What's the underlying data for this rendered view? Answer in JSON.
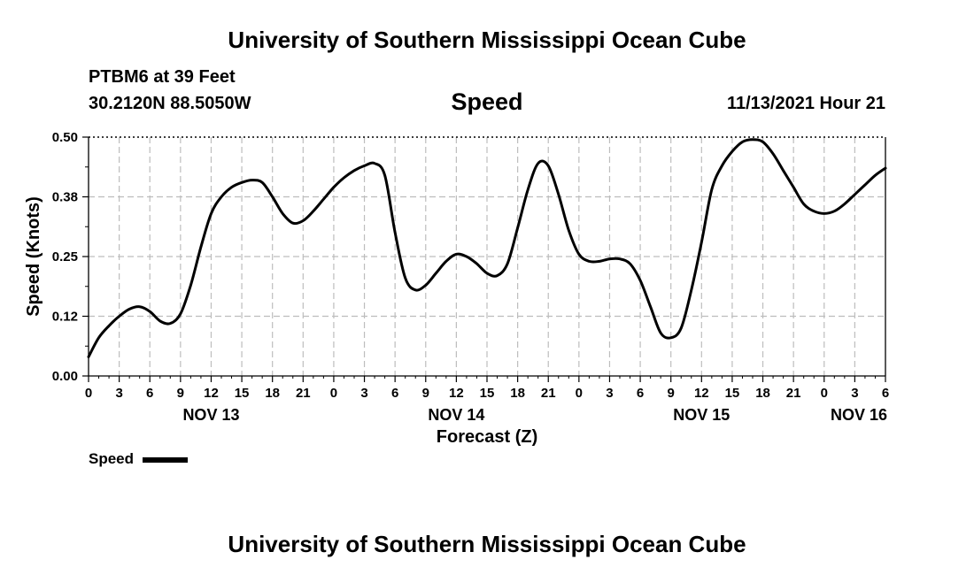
{
  "header": {
    "title": "University of Southern Mississippi Ocean Cube",
    "station": "PTBM6 at 39 Feet",
    "coordinates": "30.2120N  88.5050W",
    "parameter": "Speed",
    "timestamp": "11/13/2021 Hour 21"
  },
  "footer": {
    "title": "University of Southern Mississippi Ocean Cube"
  },
  "legend": {
    "label": "Speed",
    "color": "#000000"
  },
  "chart_data": {
    "type": "line",
    "title": "Speed",
    "xlabel": "Forecast (Z)",
    "ylabel": "Speed (Knots)",
    "y_tick_labels": [
      "0.00",
      "0.12",
      "0.25",
      "0.38",
      "0.50"
    ],
    "ylim": [
      0,
      0.5
    ],
    "x_unit": "hours",
    "xlim": [
      0,
      78
    ],
    "x_tick_labels": [
      "0",
      "3",
      "6",
      "9",
      "12",
      "15",
      "18",
      "21",
      "0",
      "3",
      "6",
      "9",
      "12",
      "15",
      "18",
      "21",
      "0",
      "3",
      "6",
      "9",
      "12",
      "15",
      "18",
      "21",
      "0",
      "3",
      "6"
    ],
    "date_labels": [
      {
        "label": "NOV 13",
        "x": 12
      },
      {
        "label": "NOV 14",
        "x": 36
      },
      {
        "label": "NOV 15",
        "x": 60
      },
      {
        "label": "NOV 16",
        "x": 78
      }
    ],
    "grid": true,
    "legend_position": "bottom-left",
    "series": [
      {
        "name": "Speed",
        "color": "#000000",
        "x": [
          0,
          1,
          2,
          3,
          4,
          5,
          6,
          7,
          8,
          9,
          10,
          11,
          12,
          13,
          14,
          15,
          16,
          17,
          18,
          19,
          20,
          21,
          22,
          23,
          24,
          25,
          26,
          27,
          28,
          29,
          30,
          31,
          32,
          33,
          34,
          35,
          36,
          37,
          38,
          39,
          40,
          41,
          42,
          43,
          44,
          45,
          46,
          47,
          48,
          49,
          50,
          51,
          52,
          53,
          54,
          55,
          56,
          57,
          58,
          59,
          60,
          61,
          62,
          63,
          64,
          65,
          66,
          67,
          68,
          69,
          70,
          71,
          72,
          73,
          74,
          75,
          76,
          77,
          78
        ],
        "values": [
          0.04,
          0.08,
          0.105,
          0.125,
          0.14,
          0.145,
          0.135,
          0.115,
          0.11,
          0.13,
          0.19,
          0.27,
          0.34,
          0.375,
          0.395,
          0.405,
          0.41,
          0.405,
          0.375,
          0.34,
          0.32,
          0.325,
          0.345,
          0.37,
          0.395,
          0.415,
          0.43,
          0.44,
          0.445,
          0.42,
          0.3,
          0.205,
          0.18,
          0.19,
          0.215,
          0.24,
          0.255,
          0.25,
          0.235,
          0.215,
          0.21,
          0.235,
          0.31,
          0.39,
          0.445,
          0.44,
          0.38,
          0.305,
          0.255,
          0.24,
          0.24,
          0.245,
          0.245,
          0.235,
          0.2,
          0.145,
          0.09,
          0.08,
          0.1,
          0.18,
          0.28,
          0.39,
          0.44,
          0.47,
          0.49,
          0.495,
          0.49,
          0.465,
          0.43,
          0.395,
          0.36,
          0.345,
          0.34,
          0.345,
          0.36,
          0.38,
          0.4,
          0.42,
          0.435
        ]
      }
    ]
  }
}
